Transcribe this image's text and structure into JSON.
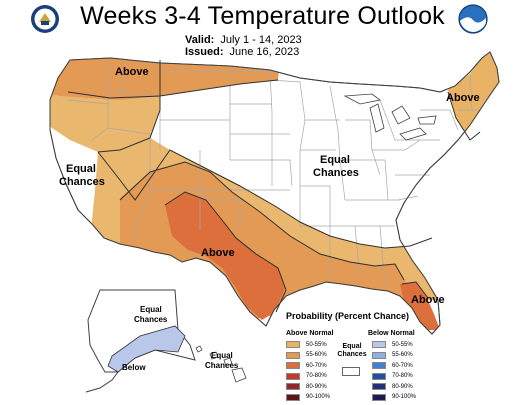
{
  "header": {
    "title": "Weeks 3-4 Temperature Outlook",
    "valid_label": "Valid:",
    "valid_value": "July 1 - 14, 2023",
    "issued_label": "Issued:",
    "issued_value": "June 16, 2023"
  },
  "logos": {
    "left": "doc-seal-icon",
    "right": "noaa-logo-icon"
  },
  "map_labels": {
    "northwest_above": "Above",
    "northeast_above": "Above",
    "south_above": "Above",
    "florida_above": "Above",
    "west_equal_line1": "Equal",
    "west_equal_line2": "Chances",
    "central_equal_line1": "Equal",
    "central_equal_line2": "Chances",
    "alaska_equal_line1": "Equal",
    "alaska_equal_line2": "Chances",
    "alaska_below": "Below",
    "hawaii_equal_line1": "Equal",
    "hawaii_equal_line2": "Chances"
  },
  "legend": {
    "title": "Probability (Percent Chance)",
    "above_heading": "Above Normal",
    "below_heading": "Below Normal",
    "equal_label_line1": "Equal",
    "equal_label_line2": "Chances",
    "above": [
      {
        "label": "50-55%",
        "color": "#e9b366"
      },
      {
        "label": "55-60%",
        "color": "#e39a55"
      },
      {
        "label": "60-70%",
        "color": "#dc6f3b"
      },
      {
        "label": "70-80%",
        "color": "#c33a2a"
      },
      {
        "label": "80-90%",
        "color": "#92262a"
      },
      {
        "label": "90-100%",
        "color": "#5c1518"
      }
    ],
    "below": [
      {
        "label": "50-55%",
        "color": "#b9c7ea"
      },
      {
        "label": "55-60%",
        "color": "#8fb1e0"
      },
      {
        "label": "60-70%",
        "color": "#3f7fcf"
      },
      {
        "label": "70-80%",
        "color": "#234fa3"
      },
      {
        "label": "80-90%",
        "color": "#25307a"
      },
      {
        "label": "90-100%",
        "color": "#1d1a4e"
      }
    ]
  },
  "colors": {
    "above_50_55": "#e9b366",
    "above_55_60": "#e39a55",
    "above_60_70": "#dc6f3b",
    "below_50_55": "#b9c7ea",
    "border": "#b0b0b0",
    "outline": "#404040"
  }
}
